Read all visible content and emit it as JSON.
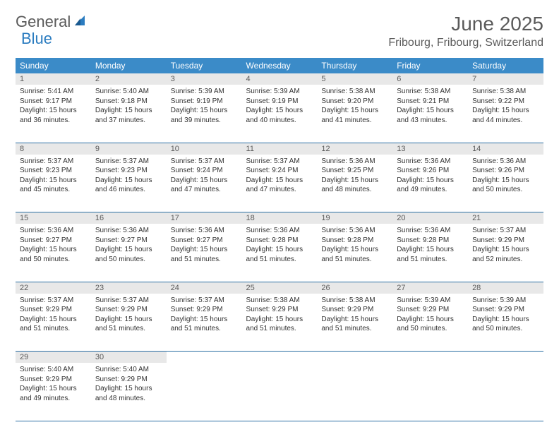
{
  "logo": {
    "text1": "General",
    "text2": "Blue"
  },
  "title": "June 2025",
  "location": "Fribourg, Fribourg, Switzerland",
  "colors": {
    "header_bg": "#3b8bc8",
    "header_text": "#ffffff",
    "daynum_bg": "#e8e8e8",
    "border": "#2b6fa3",
    "logo_gray": "#5a5a5a",
    "logo_blue": "#2b7cc0"
  },
  "weekdays": [
    "Sunday",
    "Monday",
    "Tuesday",
    "Wednesday",
    "Thursday",
    "Friday",
    "Saturday"
  ],
  "weeks": [
    [
      {
        "n": "1",
        "sr": "Sunrise: 5:41 AM",
        "ss": "Sunset: 9:17 PM",
        "d1": "Daylight: 15 hours",
        "d2": "and 36 minutes."
      },
      {
        "n": "2",
        "sr": "Sunrise: 5:40 AM",
        "ss": "Sunset: 9:18 PM",
        "d1": "Daylight: 15 hours",
        "d2": "and 37 minutes."
      },
      {
        "n": "3",
        "sr": "Sunrise: 5:39 AM",
        "ss": "Sunset: 9:19 PM",
        "d1": "Daylight: 15 hours",
        "d2": "and 39 minutes."
      },
      {
        "n": "4",
        "sr": "Sunrise: 5:39 AM",
        "ss": "Sunset: 9:19 PM",
        "d1": "Daylight: 15 hours",
        "d2": "and 40 minutes."
      },
      {
        "n": "5",
        "sr": "Sunrise: 5:38 AM",
        "ss": "Sunset: 9:20 PM",
        "d1": "Daylight: 15 hours",
        "d2": "and 41 minutes."
      },
      {
        "n": "6",
        "sr": "Sunrise: 5:38 AM",
        "ss": "Sunset: 9:21 PM",
        "d1": "Daylight: 15 hours",
        "d2": "and 43 minutes."
      },
      {
        "n": "7",
        "sr": "Sunrise: 5:38 AM",
        "ss": "Sunset: 9:22 PM",
        "d1": "Daylight: 15 hours",
        "d2": "and 44 minutes."
      }
    ],
    [
      {
        "n": "8",
        "sr": "Sunrise: 5:37 AM",
        "ss": "Sunset: 9:23 PM",
        "d1": "Daylight: 15 hours",
        "d2": "and 45 minutes."
      },
      {
        "n": "9",
        "sr": "Sunrise: 5:37 AM",
        "ss": "Sunset: 9:23 PM",
        "d1": "Daylight: 15 hours",
        "d2": "and 46 minutes."
      },
      {
        "n": "10",
        "sr": "Sunrise: 5:37 AM",
        "ss": "Sunset: 9:24 PM",
        "d1": "Daylight: 15 hours",
        "d2": "and 47 minutes."
      },
      {
        "n": "11",
        "sr": "Sunrise: 5:37 AM",
        "ss": "Sunset: 9:24 PM",
        "d1": "Daylight: 15 hours",
        "d2": "and 47 minutes."
      },
      {
        "n": "12",
        "sr": "Sunrise: 5:36 AM",
        "ss": "Sunset: 9:25 PM",
        "d1": "Daylight: 15 hours",
        "d2": "and 48 minutes."
      },
      {
        "n": "13",
        "sr": "Sunrise: 5:36 AM",
        "ss": "Sunset: 9:26 PM",
        "d1": "Daylight: 15 hours",
        "d2": "and 49 minutes."
      },
      {
        "n": "14",
        "sr": "Sunrise: 5:36 AM",
        "ss": "Sunset: 9:26 PM",
        "d1": "Daylight: 15 hours",
        "d2": "and 50 minutes."
      }
    ],
    [
      {
        "n": "15",
        "sr": "Sunrise: 5:36 AM",
        "ss": "Sunset: 9:27 PM",
        "d1": "Daylight: 15 hours",
        "d2": "and 50 minutes."
      },
      {
        "n": "16",
        "sr": "Sunrise: 5:36 AM",
        "ss": "Sunset: 9:27 PM",
        "d1": "Daylight: 15 hours",
        "d2": "and 50 minutes."
      },
      {
        "n": "17",
        "sr": "Sunrise: 5:36 AM",
        "ss": "Sunset: 9:27 PM",
        "d1": "Daylight: 15 hours",
        "d2": "and 51 minutes."
      },
      {
        "n": "18",
        "sr": "Sunrise: 5:36 AM",
        "ss": "Sunset: 9:28 PM",
        "d1": "Daylight: 15 hours",
        "d2": "and 51 minutes."
      },
      {
        "n": "19",
        "sr": "Sunrise: 5:36 AM",
        "ss": "Sunset: 9:28 PM",
        "d1": "Daylight: 15 hours",
        "d2": "and 51 minutes."
      },
      {
        "n": "20",
        "sr": "Sunrise: 5:36 AM",
        "ss": "Sunset: 9:28 PM",
        "d1": "Daylight: 15 hours",
        "d2": "and 51 minutes."
      },
      {
        "n": "21",
        "sr": "Sunrise: 5:37 AM",
        "ss": "Sunset: 9:29 PM",
        "d1": "Daylight: 15 hours",
        "d2": "and 52 minutes."
      }
    ],
    [
      {
        "n": "22",
        "sr": "Sunrise: 5:37 AM",
        "ss": "Sunset: 9:29 PM",
        "d1": "Daylight: 15 hours",
        "d2": "and 51 minutes."
      },
      {
        "n": "23",
        "sr": "Sunrise: 5:37 AM",
        "ss": "Sunset: 9:29 PM",
        "d1": "Daylight: 15 hours",
        "d2": "and 51 minutes."
      },
      {
        "n": "24",
        "sr": "Sunrise: 5:37 AM",
        "ss": "Sunset: 9:29 PM",
        "d1": "Daylight: 15 hours",
        "d2": "and 51 minutes."
      },
      {
        "n": "25",
        "sr": "Sunrise: 5:38 AM",
        "ss": "Sunset: 9:29 PM",
        "d1": "Daylight: 15 hours",
        "d2": "and 51 minutes."
      },
      {
        "n": "26",
        "sr": "Sunrise: 5:38 AM",
        "ss": "Sunset: 9:29 PM",
        "d1": "Daylight: 15 hours",
        "d2": "and 51 minutes."
      },
      {
        "n": "27",
        "sr": "Sunrise: 5:39 AM",
        "ss": "Sunset: 9:29 PM",
        "d1": "Daylight: 15 hours",
        "d2": "and 50 minutes."
      },
      {
        "n": "28",
        "sr": "Sunrise: 5:39 AM",
        "ss": "Sunset: 9:29 PM",
        "d1": "Daylight: 15 hours",
        "d2": "and 50 minutes."
      }
    ],
    [
      {
        "n": "29",
        "sr": "Sunrise: 5:40 AM",
        "ss": "Sunset: 9:29 PM",
        "d1": "Daylight: 15 hours",
        "d2": "and 49 minutes."
      },
      {
        "n": "30",
        "sr": "Sunrise: 5:40 AM",
        "ss": "Sunset: 9:29 PM",
        "d1": "Daylight: 15 hours",
        "d2": "and 48 minutes."
      },
      null,
      null,
      null,
      null,
      null
    ]
  ]
}
